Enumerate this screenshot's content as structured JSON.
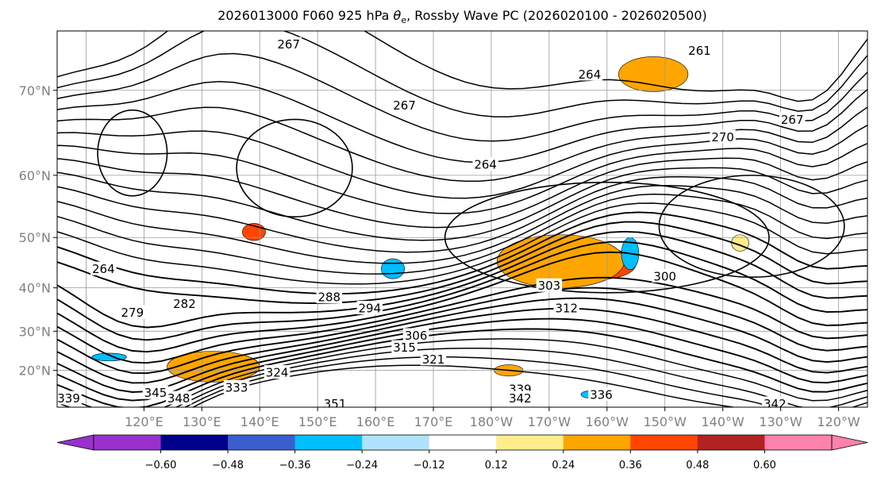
{
  "chart_data": {
    "type": "map",
    "title": "2026013000 F060 925 hPa θe, Rossby Wave PC (2026020100 - 2026020500)",
    "title_parts": {
      "before": "2026013000 F060 925 hPa ",
      "symbol": "θ",
      "subscript": "e",
      "after": ", Rossby Wave PC (2026020100 - 2026020500)"
    },
    "lon_ticks": [
      "120°E",
      "130°E",
      "140°E",
      "150°E",
      "160°E",
      "170°E",
      "180°W",
      "170°W",
      "160°W",
      "150°W",
      "140°W",
      "130°W",
      "120°W"
    ],
    "lat_ticks": [
      "70°N",
      "60°N",
      "50°N",
      "40°N",
      "30°N",
      "20°N"
    ],
    "lat_values": [
      70,
      60,
      50,
      40,
      30,
      20
    ],
    "lon_range": [
      105,
      245
    ],
    "lat_range": [
      10,
      75
    ],
    "grid": true,
    "colorbar": {
      "boundaries": [
        -0.6,
        -0.48,
        -0.36,
        -0.24,
        -0.12,
        0.12,
        0.24,
        0.36,
        0.48,
        0.6
      ],
      "tick_labels": [
        "−0.60",
        "−0.48",
        "−0.36",
        "−0.24",
        "−0.12",
        "0.12",
        "0.24",
        "0.36",
        "0.48",
        "0.60"
      ],
      "colors": [
        "#9932cc",
        "#00008b",
        "#3a5fcd",
        "#00bfff",
        "#b0e2ff",
        "#ffffff",
        "#ffec8b",
        "#ffa500",
        "#ff4500",
        "#b22222",
        "#ff82ab"
      ],
      "extend": "both"
    },
    "contour_labels": [
      {
        "text": "267",
        "lon": 145,
        "lat": 74
      },
      {
        "text": "261",
        "lon": 216,
        "lat": 73.5
      },
      {
        "text": "264",
        "lon": 197,
        "lat": 71.5
      },
      {
        "text": "267",
        "lon": 165,
        "lat": 68.5
      },
      {
        "text": "264",
        "lon": 179,
        "lat": 61.5
      },
      {
        "text": "270",
        "lon": 220,
        "lat": 65
      },
      {
        "text": "267",
        "lon": 232,
        "lat": 67
      },
      {
        "text": "300",
        "lon": 210,
        "lat": 42.5
      },
      {
        "text": "303",
        "lon": 190,
        "lat": 40.5
      },
      {
        "text": "312",
        "lon": 193,
        "lat": 35.5
      },
      {
        "text": "288",
        "lon": 152,
        "lat": 38
      },
      {
        "text": "294",
        "lon": 159,
        "lat": 35.5
      },
      {
        "text": "306",
        "lon": 167,
        "lat": 29
      },
      {
        "text": "315",
        "lon": 165,
        "lat": 26
      },
      {
        "text": "321",
        "lon": 170,
        "lat": 23
      },
      {
        "text": "324",
        "lon": 143,
        "lat": 19.5
      },
      {
        "text": "333",
        "lon": 136,
        "lat": 15.5
      },
      {
        "text": "348",
        "lon": 126,
        "lat": 12.5
      },
      {
        "text": "345",
        "lon": 122,
        "lat": 14
      },
      {
        "text": "339",
        "lon": 185,
        "lat": 15
      },
      {
        "text": "342",
        "lon": 185,
        "lat": 12.5
      },
      {
        "text": "336",
        "lon": 199,
        "lat": 13.5
      },
      {
        "text": "342",
        "lon": 229,
        "lat": 11
      },
      {
        "text": "264",
        "lon": 113,
        "lat": 44
      },
      {
        "text": "279",
        "lon": 118,
        "lat": 34.5
      },
      {
        "text": "282",
        "lon": 127,
        "lat": 36.5
      },
      {
        "text": "339",
        "lon": 107,
        "lat": 12.5
      },
      {
        "text": "351",
        "lon": 153,
        "lat": 11
      }
    ],
    "shaded_regions": [
      {
        "class": 0.42,
        "lon": 199,
        "lat": 45,
        "rx": 6,
        "ry": 3
      },
      {
        "class": 0.3,
        "lon": 192,
        "lat": 45.5,
        "rx": 11,
        "ry": 5
      },
      {
        "class": 0.42,
        "lon": 132,
        "lat": 21,
        "rx": 5,
        "ry": 3
      },
      {
        "class": 0.3,
        "lon": 132,
        "lat": 21,
        "rx": 8,
        "ry": 4
      },
      {
        "class": 0.3,
        "lon": 208,
        "lat": 71.5,
        "rx": 6,
        "ry": 1.5
      },
      {
        "class": 0.42,
        "lon": 139,
        "lat": 51,
        "rx": 2,
        "ry": 1.5
      },
      {
        "class": 0.3,
        "lon": 183,
        "lat": 20,
        "rx": 2.5,
        "ry": 1.5
      },
      {
        "class": -0.3,
        "lon": 114,
        "lat": 23.5,
        "rx": 3,
        "ry": 1
      },
      {
        "class": -0.3,
        "lon": 163,
        "lat": 44,
        "rx": 2,
        "ry": 2
      },
      {
        "class": -0.3,
        "lon": 204,
        "lat": 47,
        "rx": 1.5,
        "ry": 3
      },
      {
        "class": -0.3,
        "lon": 197,
        "lat": 13.5,
        "rx": 1.5,
        "ry": 1
      },
      {
        "class": 0.18,
        "lon": 223,
        "lat": 49,
        "rx": 1.5,
        "ry": 1.5
      }
    ]
  }
}
